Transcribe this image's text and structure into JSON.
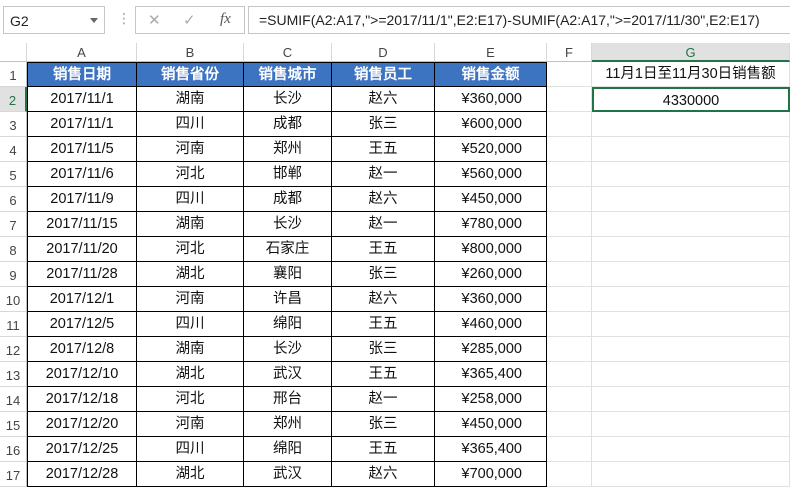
{
  "name_box": "G2",
  "formula_bar": {
    "cancel": "✕",
    "enter": "✓",
    "fx": "fx",
    "formula": "=SUMIF(A2:A17,\">=2017/11/1\",E2:E17)-SUMIF(A2:A17,\">=2017/11/30\",E2:E17)"
  },
  "columns": [
    "A",
    "B",
    "C",
    "D",
    "E",
    "F",
    "G"
  ],
  "rows": [
    "1",
    "2",
    "3",
    "4",
    "5",
    "6",
    "7",
    "8",
    "9",
    "10",
    "11",
    "12",
    "13",
    "14",
    "15",
    "16",
    "17"
  ],
  "headers": [
    "销售日期",
    "销售省份",
    "销售城市",
    "销售员工",
    "销售金额"
  ],
  "data": [
    [
      "2017/11/1",
      "湖南",
      "长沙",
      "赵六",
      "¥360,000"
    ],
    [
      "2017/11/1",
      "四川",
      "成都",
      "张三",
      "¥600,000"
    ],
    [
      "2017/11/5",
      "河南",
      "郑州",
      "王五",
      "¥520,000"
    ],
    [
      "2017/11/6",
      "河北",
      "邯郸",
      "赵一",
      "¥560,000"
    ],
    [
      "2017/11/9",
      "四川",
      "成都",
      "赵六",
      "¥450,000"
    ],
    [
      "2017/11/15",
      "湖南",
      "长沙",
      "赵一",
      "¥780,000"
    ],
    [
      "2017/11/20",
      "河北",
      "石家庄",
      "王五",
      "¥800,000"
    ],
    [
      "2017/11/28",
      "湖北",
      "襄阳",
      "张三",
      "¥260,000"
    ],
    [
      "2017/12/1",
      "河南",
      "许昌",
      "赵六",
      "¥360,000"
    ],
    [
      "2017/12/5",
      "四川",
      "绵阳",
      "王五",
      "¥460,000"
    ],
    [
      "2017/12/8",
      "湖南",
      "长沙",
      "张三",
      "¥285,000"
    ],
    [
      "2017/12/10",
      "湖北",
      "武汉",
      "王五",
      "¥365,400"
    ],
    [
      "2017/12/18",
      "河北",
      "邢台",
      "赵一",
      "¥258,000"
    ],
    [
      "2017/12/20",
      "河南",
      "郑州",
      "张三",
      "¥450,000"
    ],
    [
      "2017/12/25",
      "四川",
      "绵阳",
      "王五",
      "¥365,400"
    ],
    [
      "2017/12/28",
      "湖北",
      "武汉",
      "赵六",
      "¥700,000"
    ]
  ],
  "g1": "11月1日至11月30日销售额",
  "g2": "4330000"
}
